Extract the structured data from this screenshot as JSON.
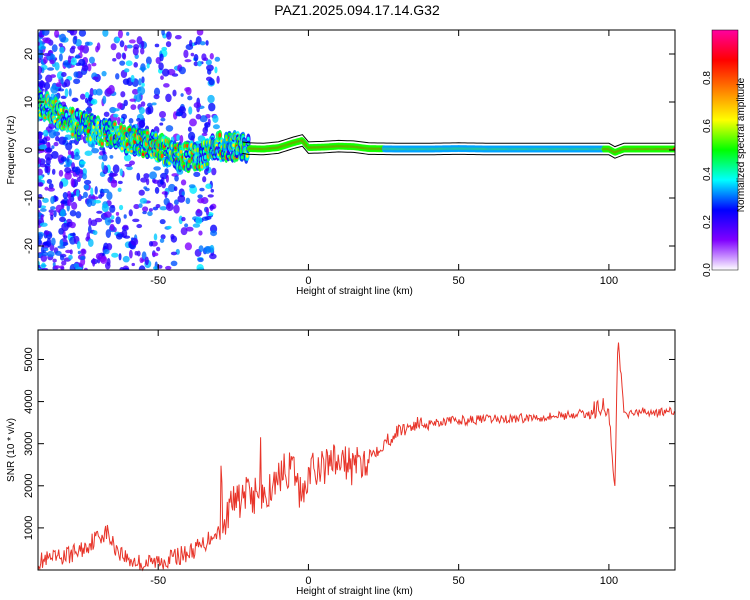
{
  "title": "PAZ1.2025.094.17.14.G32",
  "chart_data": [
    {
      "type": "heatmap",
      "xlabel": "Height of straight line (km)",
      "ylabel": "Frequency (Hz)",
      "xlim": [
        -90,
        122
      ],
      "ylim": [
        -25,
        25
      ],
      "xticks": [
        -50,
        0,
        50,
        100
      ],
      "yticks": [
        -20,
        -10,
        0,
        10,
        20
      ],
      "ridge": {
        "x": [
          -90,
          -85,
          -80,
          -75,
          -70,
          -65,
          -60,
          -55,
          -50,
          -45,
          -40,
          -35,
          -30,
          -25,
          -20,
          -15,
          -10,
          -5,
          -2,
          0,
          5,
          10,
          15,
          20,
          30,
          40,
          50,
          60,
          70,
          80,
          90,
          100,
          102,
          105,
          122
        ],
        "y": [
          10,
          8,
          6,
          5,
          4,
          3,
          2,
          1.5,
          0.5,
          -1,
          -1.5,
          -1,
          1,
          0.8,
          0.3,
          0.2,
          0.5,
          1.5,
          2,
          0.5,
          0.6,
          0.8,
          0.7,
          0.3,
          0.2,
          0.2,
          0.3,
          0.2,
          0.2,
          0.2,
          0.2,
          0.2,
          -0.5,
          0.2,
          0.2
        ]
      },
      "colorbar": {
        "label": "Normalized spectral amplitude",
        "ticks": [
          0.0,
          0.2,
          0.4,
          0.6,
          0.8
        ],
        "tick_labels": [
          "0.0",
          "0.2",
          "0.4",
          "0.6",
          "0.8"
        ],
        "range": [
          0,
          1
        ],
        "colors": [
          "#ffffff",
          "#8000ff",
          "#0000ff",
          "#00ffff",
          "#00ff00",
          "#ffff00",
          "#ff8000",
          "#ff0000",
          "#ff00a0"
        ]
      },
      "band_color": "#000000"
    },
    {
      "type": "line",
      "xlabel": "Height of straight line (km)",
      "ylabel": "SNR (10 * v/v)",
      "xlim": [
        -90,
        122
      ],
      "ylim": [
        0,
        5700
      ],
      "xticks": [
        -50,
        0,
        50,
        100
      ],
      "yticks": [
        1000,
        2000,
        3000,
        4000,
        5000
      ],
      "line_color": "#e8352a",
      "series": [
        {
          "x": [
            -90,
            -85,
            -80,
            -75,
            -70,
            -67,
            -65,
            -60,
            -55,
            -50,
            -45,
            -40,
            -35,
            -30,
            -25,
            -20,
            -15,
            -12,
            -10,
            -5,
            -3,
            0,
            3,
            5,
            10,
            15,
            20,
            25,
            30,
            35,
            40,
            50,
            60,
            70,
            80,
            90,
            95,
            100,
            102,
            103,
            105,
            110,
            122
          ],
          "y": [
            200,
            250,
            350,
            500,
            800,
            900,
            600,
            250,
            150,
            200,
            300,
            400,
            600,
            1000,
            1600,
            1800,
            1700,
            2000,
            2300,
            2400,
            1800,
            2200,
            2500,
            2400,
            2600,
            2400,
            2700,
            3000,
            3300,
            3450,
            3500,
            3550,
            3580,
            3600,
            3650,
            3700,
            3700,
            3750,
            1900,
            5600,
            3700,
            3750,
            3750
          ]
        }
      ]
    }
  ]
}
